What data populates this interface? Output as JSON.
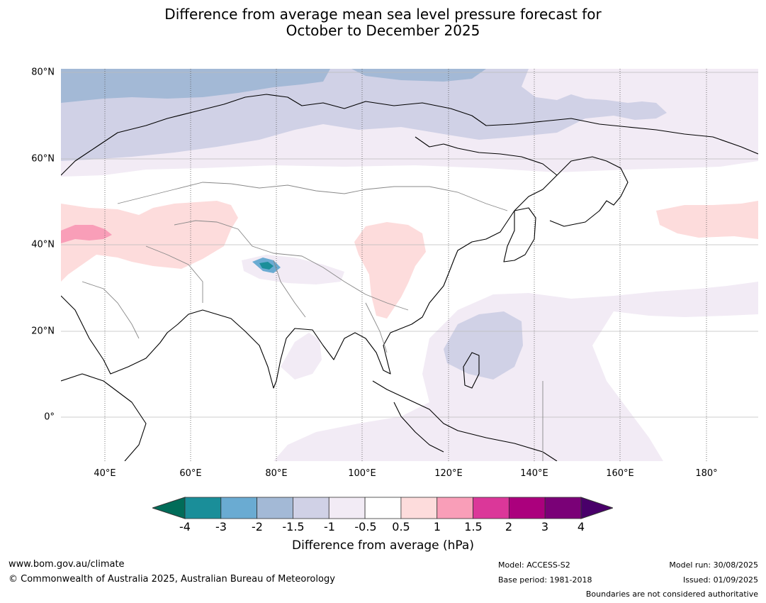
{
  "title_line1": "Difference from average mean sea level pressure forecast for",
  "title_line2": "October to December 2025",
  "lat_labels": [
    "80°N",
    "60°N",
    "40°N",
    "20°N",
    "0°"
  ],
  "lon_labels": [
    "40°E",
    "60°E",
    "80°E",
    "100°E",
    "120°E",
    "140°E",
    "160°E",
    "180°"
  ],
  "colorbar": {
    "ticks": [
      "-4",
      "-3",
      "-2",
      "-1.5",
      "-1",
      "-0.5",
      "0.5",
      "1",
      "1.5",
      "2",
      "3",
      "4"
    ],
    "colors": [
      "#1a8e99",
      "#6aabd2",
      "#a3b9d6",
      "#d0d1e6",
      "#f2ebf5",
      "#ffffff",
      "#fddcdc",
      "#f99eb8",
      "#db3799",
      "#ab007d",
      "#7a0177"
    ],
    "low_extend_color": "#016c59",
    "high_extend_color": "#49006a",
    "label": "Difference from average (hPa)"
  },
  "footer": {
    "website": "www.bom.gov.au/climate",
    "copyright": "© Commonwealth of Australia 2025, Australian Bureau of Meteorology",
    "model": "Model: ACCESS-S2",
    "base_period": "Base period: 1981-2018",
    "model_run": "Model run: 30/08/2025",
    "issued": "Issued: 01/09/2025",
    "disclaimer": "Boundaries are not considered authoritative"
  }
}
